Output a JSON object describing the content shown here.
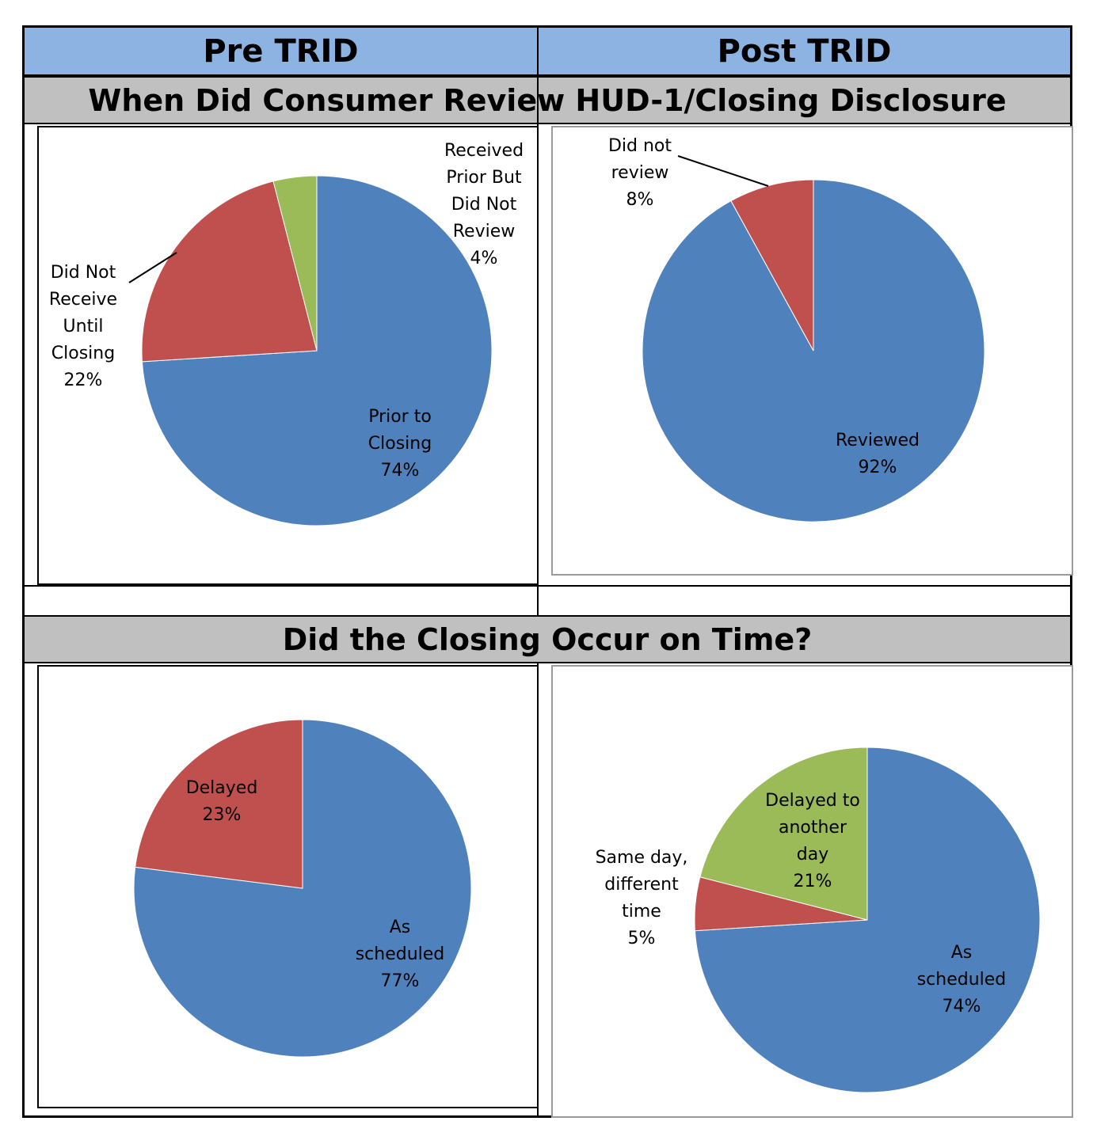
{
  "headers": {
    "pre": "Pre TRID",
    "post": "Post TRID"
  },
  "sections": {
    "review": "When Did Consumer Review HUD-1/Closing Disclosure",
    "ontime": "Did the Closing Occur on Time?"
  },
  "colors": {
    "blue": "#4f81bd",
    "red": "#c0504d",
    "green": "#9bbb59",
    "header_blue": "#8db3e2",
    "band_gray": "#c0c0c0"
  },
  "chart_data": [
    {
      "type": "pie",
      "id": "pre-review",
      "slices": [
        {
          "label_lines": [
            "Prior to",
            "Closing",
            "74%"
          ],
          "value": 74,
          "color": "#4f81bd"
        },
        {
          "label_lines": [
            "Did Not",
            "Receive",
            "Until",
            "Closing",
            "22%"
          ],
          "value": 22,
          "color": "#c0504d"
        },
        {
          "label_lines": [
            "Received",
            "Prior But",
            "Did Not",
            "Review",
            "4%"
          ],
          "value": 4,
          "color": "#9bbb59"
        }
      ]
    },
    {
      "type": "pie",
      "id": "post-review",
      "slices": [
        {
          "label_lines": [
            "Reviewed",
            "92%"
          ],
          "value": 92,
          "color": "#4f81bd"
        },
        {
          "label_lines": [
            "Did not",
            "review",
            "8%"
          ],
          "value": 8,
          "color": "#c0504d"
        }
      ]
    },
    {
      "type": "pie",
      "id": "pre-ontime",
      "slices": [
        {
          "label_lines": [
            "As",
            "scheduled",
            "77%"
          ],
          "value": 77,
          "color": "#4f81bd"
        },
        {
          "label_lines": [
            "Delayed",
            "23%"
          ],
          "value": 23,
          "color": "#c0504d"
        }
      ]
    },
    {
      "type": "pie",
      "id": "post-ontime",
      "slices": [
        {
          "label_lines": [
            "As",
            "scheduled",
            "74%"
          ],
          "value": 74,
          "color": "#4f81bd"
        },
        {
          "label_lines": [
            "Same day,",
            "different",
            "time",
            "5%"
          ],
          "value": 5,
          "color": "#c0504d"
        },
        {
          "label_lines": [
            "Delayed to",
            "another",
            "day",
            "21%"
          ],
          "value": 21,
          "color": "#9bbb59"
        }
      ]
    }
  ]
}
